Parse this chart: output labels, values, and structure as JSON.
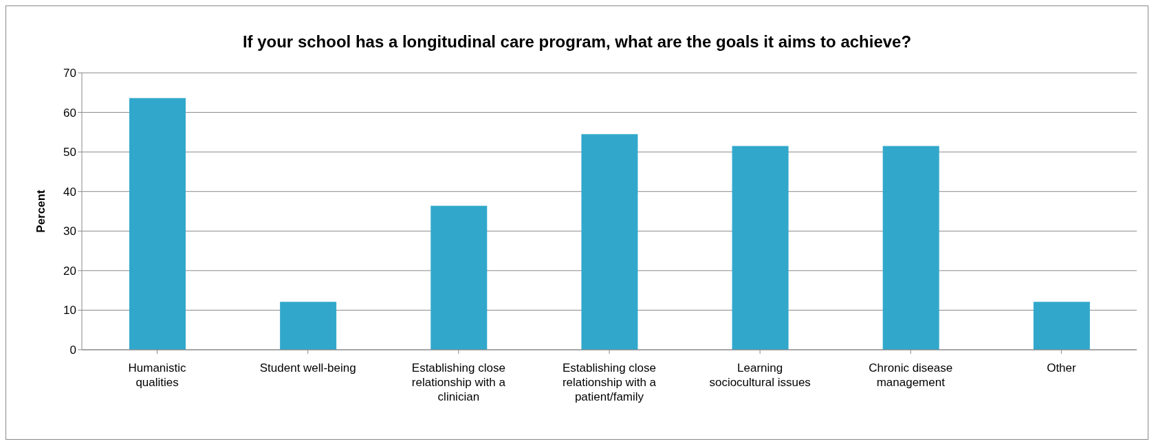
{
  "chart_data": {
    "type": "bar",
    "title": "If your school has a longitudinal care program, what are the goals it aims to achieve?",
    "ylabel": "Percent",
    "categories": [
      "Humanistic qualities",
      "Student well-being",
      "Establishing close relationship with a clinician",
      "Establishing close relationship with a patient/family",
      "Learning sociocultural issues",
      "Chronic disease management",
      "Other"
    ],
    "values": [
      63.6,
      12.1,
      36.4,
      54.5,
      51.5,
      51.5,
      12.1
    ],
    "color": "#31a8cb",
    "ylim": [
      0,
      70
    ],
    "yticks": [
      0,
      10,
      20,
      30,
      40,
      50,
      60,
      70
    ],
    "grid": "y"
  }
}
